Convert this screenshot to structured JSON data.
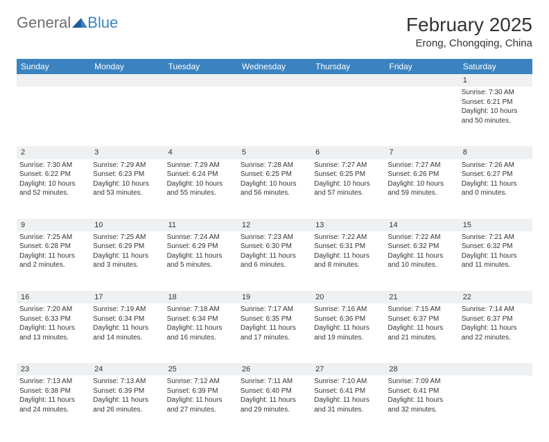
{
  "logo": {
    "general": "General",
    "blue": "Blue"
  },
  "title": "February 2025",
  "location": "Erong, Chongqing, China",
  "headers": [
    "Sunday",
    "Monday",
    "Tuesday",
    "Wednesday",
    "Thursday",
    "Friday",
    "Saturday"
  ],
  "colors": {
    "header_bg": "#3b83c0",
    "header_text": "#ffffff",
    "daynum_bg": "#eef0f2",
    "text": "#333333",
    "logo_gray": "#6b6b6b",
    "logo_blue": "#3b83c0",
    "page_bg": "#ffffff"
  },
  "weeks": [
    {
      "nums": [
        "",
        "",
        "",
        "",
        "",
        "",
        "1"
      ],
      "cells": [
        null,
        null,
        null,
        null,
        null,
        null,
        {
          "sunrise": "Sunrise: 7:30 AM",
          "sunset": "Sunset: 6:21 PM",
          "daylight": "Daylight: 10 hours and 50 minutes."
        }
      ]
    },
    {
      "nums": [
        "2",
        "3",
        "4",
        "5",
        "6",
        "7",
        "8"
      ],
      "cells": [
        {
          "sunrise": "Sunrise: 7:30 AM",
          "sunset": "Sunset: 6:22 PM",
          "daylight": "Daylight: 10 hours and 52 minutes."
        },
        {
          "sunrise": "Sunrise: 7:29 AM",
          "sunset": "Sunset: 6:23 PM",
          "daylight": "Daylight: 10 hours and 53 minutes."
        },
        {
          "sunrise": "Sunrise: 7:29 AM",
          "sunset": "Sunset: 6:24 PM",
          "daylight": "Daylight: 10 hours and 55 minutes."
        },
        {
          "sunrise": "Sunrise: 7:28 AM",
          "sunset": "Sunset: 6:25 PM",
          "daylight": "Daylight: 10 hours and 56 minutes."
        },
        {
          "sunrise": "Sunrise: 7:27 AM",
          "sunset": "Sunset: 6:25 PM",
          "daylight": "Daylight: 10 hours and 57 minutes."
        },
        {
          "sunrise": "Sunrise: 7:27 AM",
          "sunset": "Sunset: 6:26 PM",
          "daylight": "Daylight: 10 hours and 59 minutes."
        },
        {
          "sunrise": "Sunrise: 7:26 AM",
          "sunset": "Sunset: 6:27 PM",
          "daylight": "Daylight: 11 hours and 0 minutes."
        }
      ]
    },
    {
      "nums": [
        "9",
        "10",
        "11",
        "12",
        "13",
        "14",
        "15"
      ],
      "cells": [
        {
          "sunrise": "Sunrise: 7:25 AM",
          "sunset": "Sunset: 6:28 PM",
          "daylight": "Daylight: 11 hours and 2 minutes."
        },
        {
          "sunrise": "Sunrise: 7:25 AM",
          "sunset": "Sunset: 6:29 PM",
          "daylight": "Daylight: 11 hours and 3 minutes."
        },
        {
          "sunrise": "Sunrise: 7:24 AM",
          "sunset": "Sunset: 6:29 PM",
          "daylight": "Daylight: 11 hours and 5 minutes."
        },
        {
          "sunrise": "Sunrise: 7:23 AM",
          "sunset": "Sunset: 6:30 PM",
          "daylight": "Daylight: 11 hours and 6 minutes."
        },
        {
          "sunrise": "Sunrise: 7:22 AM",
          "sunset": "Sunset: 6:31 PM",
          "daylight": "Daylight: 11 hours and 8 minutes."
        },
        {
          "sunrise": "Sunrise: 7:22 AM",
          "sunset": "Sunset: 6:32 PM",
          "daylight": "Daylight: 11 hours and 10 minutes."
        },
        {
          "sunrise": "Sunrise: 7:21 AM",
          "sunset": "Sunset: 6:32 PM",
          "daylight": "Daylight: 11 hours and 11 minutes."
        }
      ]
    },
    {
      "nums": [
        "16",
        "17",
        "18",
        "19",
        "20",
        "21",
        "22"
      ],
      "cells": [
        {
          "sunrise": "Sunrise: 7:20 AM",
          "sunset": "Sunset: 6:33 PM",
          "daylight": "Daylight: 11 hours and 13 minutes."
        },
        {
          "sunrise": "Sunrise: 7:19 AM",
          "sunset": "Sunset: 6:34 PM",
          "daylight": "Daylight: 11 hours and 14 minutes."
        },
        {
          "sunrise": "Sunrise: 7:18 AM",
          "sunset": "Sunset: 6:34 PM",
          "daylight": "Daylight: 11 hours and 16 minutes."
        },
        {
          "sunrise": "Sunrise: 7:17 AM",
          "sunset": "Sunset: 6:35 PM",
          "daylight": "Daylight: 11 hours and 17 minutes."
        },
        {
          "sunrise": "Sunrise: 7:16 AM",
          "sunset": "Sunset: 6:36 PM",
          "daylight": "Daylight: 11 hours and 19 minutes."
        },
        {
          "sunrise": "Sunrise: 7:15 AM",
          "sunset": "Sunset: 6:37 PM",
          "daylight": "Daylight: 11 hours and 21 minutes."
        },
        {
          "sunrise": "Sunrise: 7:14 AM",
          "sunset": "Sunset: 6:37 PM",
          "daylight": "Daylight: 11 hours and 22 minutes."
        }
      ]
    },
    {
      "nums": [
        "23",
        "24",
        "25",
        "26",
        "27",
        "28",
        ""
      ],
      "cells": [
        {
          "sunrise": "Sunrise: 7:13 AM",
          "sunset": "Sunset: 6:38 PM",
          "daylight": "Daylight: 11 hours and 24 minutes."
        },
        {
          "sunrise": "Sunrise: 7:13 AM",
          "sunset": "Sunset: 6:39 PM",
          "daylight": "Daylight: 11 hours and 26 minutes."
        },
        {
          "sunrise": "Sunrise: 7:12 AM",
          "sunset": "Sunset: 6:39 PM",
          "daylight": "Daylight: 11 hours and 27 minutes."
        },
        {
          "sunrise": "Sunrise: 7:11 AM",
          "sunset": "Sunset: 6:40 PM",
          "daylight": "Daylight: 11 hours and 29 minutes."
        },
        {
          "sunrise": "Sunrise: 7:10 AM",
          "sunset": "Sunset: 6:41 PM",
          "daylight": "Daylight: 11 hours and 31 minutes."
        },
        {
          "sunrise": "Sunrise: 7:09 AM",
          "sunset": "Sunset: 6:41 PM",
          "daylight": "Daylight: 11 hours and 32 minutes."
        },
        null
      ]
    }
  ]
}
